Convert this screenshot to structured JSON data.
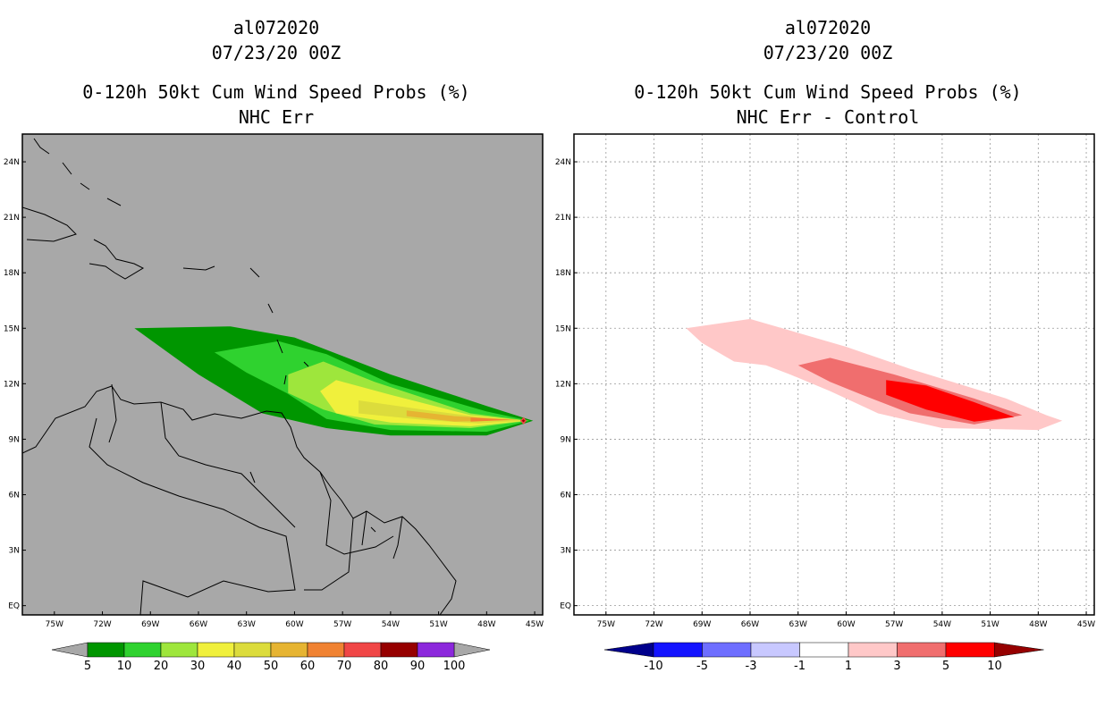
{
  "chart_data": [
    {
      "type": "filled-contour-map",
      "storm_id": "al072020",
      "datetime": "07/23/20 00Z",
      "title": "0-120h 50kt Cum Wind Speed Probs (%)",
      "subtitle": "NHC Err",
      "x_ticks": [
        "75W",
        "72W",
        "69W",
        "66W",
        "63W",
        "60W",
        "57W",
        "54W",
        "51W",
        "48W",
        "45W"
      ],
      "y_ticks": [
        "EQ",
        "3N",
        "6N",
        "9N",
        "12N",
        "15N",
        "18N",
        "21N",
        "24N"
      ],
      "lon_range": [
        -77,
        -44.5
      ],
      "lat_range": [
        -0.5,
        25.5
      ],
      "background": "#a8a8a8",
      "grid": false,
      "colorbar": {
        "labels": [
          "5",
          "10",
          "20",
          "30",
          "40",
          "50",
          "60",
          "70",
          "80",
          "90",
          "100"
        ],
        "colors": [
          "#009600",
          "#2fd22f",
          "#9ee63c",
          "#f0f03c",
          "#dcdc3c",
          "#e6b432",
          "#f08232",
          "#f04646",
          "#960000",
          "#8c28dc"
        ],
        "arrow_color": "#a8a8a8"
      },
      "contours": [
        {
          "label": "5-10",
          "color": "#009600",
          "polygon": [
            [
              -70,
              15
            ],
            [
              -64,
              15.1
            ],
            [
              -60,
              14.5
            ],
            [
              -54,
              12.5
            ],
            [
              -48,
              10.8
            ],
            [
              -45.1,
              10
            ],
            [
              -48,
              9.2
            ],
            [
              -54,
              9.2
            ],
            [
              -58,
              9.6
            ],
            [
              -62,
              10.4
            ],
            [
              -66,
              12.5
            ]
          ]
        },
        {
          "label": "10-20",
          "color": "#2fd22f",
          "polygon": [
            [
              -65,
              13.7
            ],
            [
              -61,
              14.3
            ],
            [
              -58,
              13.6
            ],
            [
              -54,
              12
            ],
            [
              -48,
              10.5
            ],
            [
              -45.3,
              10
            ],
            [
              -48,
              9.4
            ],
            [
              -54,
              9.5
            ],
            [
              -58,
              10.1
            ],
            [
              -60.5,
              11.5
            ],
            [
              -63,
              12.6
            ]
          ]
        },
        {
          "label": "20-30",
          "color": "#9ee63c",
          "polygon": [
            [
              -60.4,
              12.5
            ],
            [
              -58.2,
              13.2
            ],
            [
              -55,
              12.1
            ],
            [
              -49,
              10.4
            ],
            [
              -45.4,
              10
            ],
            [
              -49,
              9.6
            ],
            [
              -55,
              9.8
            ],
            [
              -58.2,
              10.6
            ],
            [
              -60.4,
              11.5
            ]
          ]
        },
        {
          "label": "30-40",
          "color": "#f0f03c",
          "polygon": [
            [
              -58.4,
              11.6
            ],
            [
              -57.4,
              12.2
            ],
            [
              -54,
              11.4
            ],
            [
              -49,
              10.3
            ],
            [
              -45.5,
              10
            ],
            [
              -49,
              9.7
            ],
            [
              -54,
              9.9
            ],
            [
              -57.4,
              10.4
            ]
          ]
        },
        {
          "label": "40-50",
          "color": "#dcdc3c",
          "polygon": [
            [
              -56,
              11.1
            ],
            [
              -52,
              10.6
            ],
            [
              -48.5,
              10.2
            ],
            [
              -45.6,
              10
            ],
            [
              -48.5,
              9.85
            ],
            [
              -52,
              10.05
            ],
            [
              -56,
              10.4
            ]
          ]
        },
        {
          "label": "50-60",
          "color": "#e6b432",
          "polygon": [
            [
              -53,
              10.55
            ],
            [
              -50,
              10.25
            ],
            [
              -46,
              10.05
            ],
            [
              -50,
              9.95
            ],
            [
              -53,
              10.25
            ]
          ]
        },
        {
          "label": "60-70",
          "color": "#f08232",
          "polygon": [
            [
              -49,
              10.17
            ],
            [
              -46.5,
              10.05
            ],
            [
              -49,
              9.95
            ]
          ]
        },
        {
          "label": "70-80",
          "color": "#f04646",
          "polygon": [
            [
              -45.9,
              10
            ],
            [
              -45.7,
              10.2
            ],
            [
              -45.5,
              10
            ],
            [
              -45.7,
              9.8
            ]
          ]
        },
        {
          "label": "80-90",
          "color": "#960000",
          "polygon": [
            [
              -45.8,
              10
            ],
            [
              -45.7,
              10.08
            ],
            [
              -45.6,
              10
            ],
            [
              -45.7,
              9.92
            ]
          ]
        }
      ]
    },
    {
      "type": "filled-contour-map",
      "storm_id": "al072020",
      "datetime": "07/23/20 00Z",
      "title": "0-120h 50kt Cum Wind Speed Probs (%)",
      "subtitle": "NHC Err - Control",
      "x_ticks": [
        "75W",
        "72W",
        "69W",
        "66W",
        "63W",
        "60W",
        "57W",
        "54W",
        "51W",
        "48W",
        "45W"
      ],
      "y_ticks": [
        "EQ",
        "3N",
        "6N",
        "9N",
        "12N",
        "15N",
        "18N",
        "21N",
        "24N"
      ],
      "lon_range": [
        -77,
        -44.5
      ],
      "lat_range": [
        -0.5,
        25.5
      ],
      "background": "#ffffff",
      "grid": true,
      "colorbar": {
        "labels": [
          "-10",
          "-5",
          "-3",
          "-1",
          "1",
          "3",
          "5",
          "10"
        ],
        "colors": [
          "#1414ff",
          "#6e6eff",
          "#c8c8ff",
          "#ffffff",
          "#ffc8c8",
          "#f06e6e",
          "#ff0000"
        ],
        "left_arrow_color": "#00008c",
        "right_arrow_color": "#960000"
      },
      "contours": [
        {
          "label": "1-3",
          "color": "#ffc8c8",
          "polygon": [
            [
              -70,
              15
            ],
            [
              -66,
              15.5
            ],
            [
              -62,
              14.5
            ],
            [
              -60,
              14
            ],
            [
              -56,
              12.8
            ],
            [
              -50,
              11.2
            ],
            [
              -47.5,
              10.3
            ],
            [
              -46.5,
              10
            ],
            [
              -48,
              9.5
            ],
            [
              -54,
              9.6
            ],
            [
              -58,
              10.4
            ],
            [
              -61,
              11.6
            ],
            [
              -63.5,
              12.5
            ],
            [
              -65,
              13
            ],
            [
              -67,
              13.2
            ],
            [
              -69,
              14.2
            ]
          ]
        },
        {
          "label": "3-5",
          "color": "#f06e6e",
          "polygon": [
            [
              -63,
              13
            ],
            [
              -61,
              13.4
            ],
            [
              -57,
              12.5
            ],
            [
              -52,
              11.2
            ],
            [
              -49,
              10.3
            ],
            [
              -52,
              9.8
            ],
            [
              -56,
              10.4
            ],
            [
              -59,
              11.4
            ],
            [
              -61,
              12.1
            ]
          ]
        },
        {
          "label": "5-10",
          "color": "#ff0000",
          "polygon": [
            [
              -57.5,
              12.2
            ],
            [
              -55,
              11.9
            ],
            [
              -52,
              11
            ],
            [
              -49.5,
              10.2
            ],
            [
              -52,
              9.95
            ],
            [
              -55,
              10.6
            ],
            [
              -57.5,
              11.4
            ]
          ]
        }
      ]
    }
  ]
}
